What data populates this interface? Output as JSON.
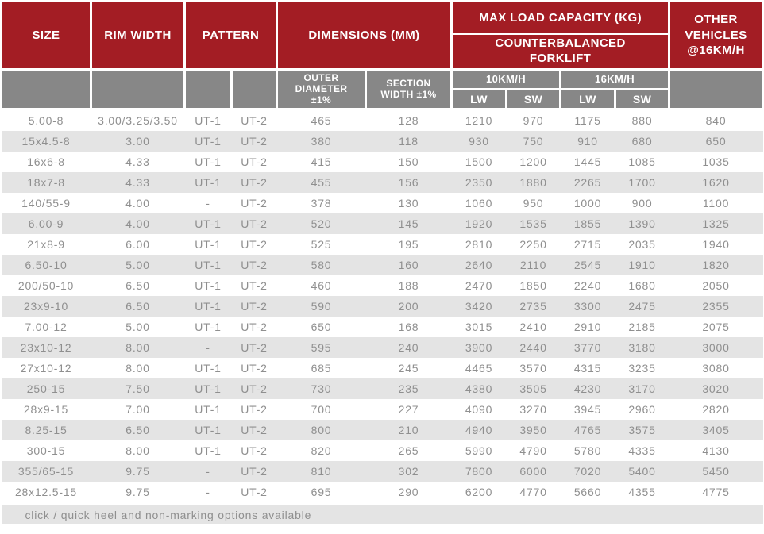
{
  "colors": {
    "header_red": "#A31D24",
    "header_gray": "#878787",
    "stripe_gray": "#E4E4E4",
    "data_text": "#8F8F8F",
    "header_text": "#FFFFFF"
  },
  "chart_data": {
    "type": "table",
    "header": {
      "size": "SIZE",
      "rim_width": "RIM WIDTH",
      "pattern": "PATTERN",
      "dimensions_mm": "DIMENSIONS (MM)",
      "max_load_capacity": "MAX LOAD CAPACITY (KG)",
      "counterbalanced_forklift": "COUNTERBALANCED FORKLIFT",
      "other_vehicles": "OTHER VEHICLES @16KM/H",
      "outer_diameter": "OUTER DIAMETER ±1%",
      "section_width": "SECTION WIDTH ±1%",
      "speed_10kmh": "10KM/H",
      "speed_16kmh": "16KM/H",
      "lw": "LW",
      "sw": "SW"
    },
    "columns": [
      "SIZE",
      "RIM WIDTH",
      "PATTERN UT-1",
      "PATTERN UT-2",
      "OUTER DIAMETER ±1% (MM)",
      "SECTION WIDTH ±1% (MM)",
      "10KM/H LW (KG)",
      "10KM/H SW (KG)",
      "16KM/H LW (KG)",
      "16KM/H SW (KG)",
      "OTHER VEHICLES @16KM/H (KG)"
    ],
    "rows": [
      [
        "5.00-8",
        "3.00/3.25/3.50",
        "UT-1",
        "UT-2",
        "465",
        "128",
        "1210",
        "970",
        "1175",
        "880",
        "840"
      ],
      [
        "15x4.5-8",
        "3.00",
        "UT-1",
        "UT-2",
        "380",
        "118",
        "930",
        "750",
        "910",
        "680",
        "650"
      ],
      [
        "16x6-8",
        "4.33",
        "UT-1",
        "UT-2",
        "415",
        "150",
        "1500",
        "1200",
        "1445",
        "1085",
        "1035"
      ],
      [
        "18x7-8",
        "4.33",
        "UT-1",
        "UT-2",
        "455",
        "156",
        "2350",
        "1880",
        "2265",
        "1700",
        "1620"
      ],
      [
        "140/55-9",
        "4.00",
        "-",
        "UT-2",
        "378",
        "130",
        "1060",
        "950",
        "1000",
        "900",
        "1100"
      ],
      [
        "6.00-9",
        "4.00",
        "UT-1",
        "UT-2",
        "520",
        "145",
        "1920",
        "1535",
        "1855",
        "1390",
        "1325"
      ],
      [
        "21x8-9",
        "6.00",
        "UT-1",
        "UT-2",
        "525",
        "195",
        "2810",
        "2250",
        "2715",
        "2035",
        "1940"
      ],
      [
        "6.50-10",
        "5.00",
        "UT-1",
        "UT-2",
        "580",
        "160",
        "2640",
        "2110",
        "2545",
        "1910",
        "1820"
      ],
      [
        "200/50-10",
        "6.50",
        "UT-1",
        "UT-2",
        "460",
        "188",
        "2470",
        "1850",
        "2240",
        "1680",
        "2050"
      ],
      [
        "23x9-10",
        "6.50",
        "UT-1",
        "UT-2",
        "590",
        "200",
        "3420",
        "2735",
        "3300",
        "2475",
        "2355"
      ],
      [
        "7.00-12",
        "5.00",
        "UT-1",
        "UT-2",
        "650",
        "168",
        "3015",
        "2410",
        "2910",
        "2185",
        "2075"
      ],
      [
        "23x10-12",
        "8.00",
        "-",
        "UT-2",
        "595",
        "240",
        "3900",
        "2440",
        "3770",
        "3180",
        "3000"
      ],
      [
        "27x10-12",
        "8.00",
        "UT-1",
        "UT-2",
        "685",
        "245",
        "4465",
        "3570",
        "4315",
        "3235",
        "3080"
      ],
      [
        "250-15",
        "7.50",
        "UT-1",
        "UT-2",
        "730",
        "235",
        "4380",
        "3505",
        "4230",
        "3170",
        "3020"
      ],
      [
        "28x9-15",
        "7.00",
        "UT-1",
        "UT-2",
        "700",
        "227",
        "4090",
        "3270",
        "3945",
        "2960",
        "2820"
      ],
      [
        "8.25-15",
        "6.50",
        "UT-1",
        "UT-2",
        "800",
        "210",
        "4940",
        "3950",
        "4765",
        "3575",
        "3405"
      ],
      [
        "300-15",
        "8.00",
        "UT-1",
        "UT-2",
        "820",
        "265",
        "5990",
        "4790",
        "5780",
        "4335",
        "4130"
      ],
      [
        "355/65-15",
        "9.75",
        "-",
        "UT-2",
        "810",
        "302",
        "7800",
        "6000",
        "7020",
        "5400",
        "5450"
      ],
      [
        "28x12.5-15",
        "9.75",
        "-",
        "UT-2",
        "695",
        "290",
        "6200",
        "4770",
        "5660",
        "4355",
        "4775"
      ]
    ],
    "footer_note": "click / quick heel and non-marking options available"
  }
}
